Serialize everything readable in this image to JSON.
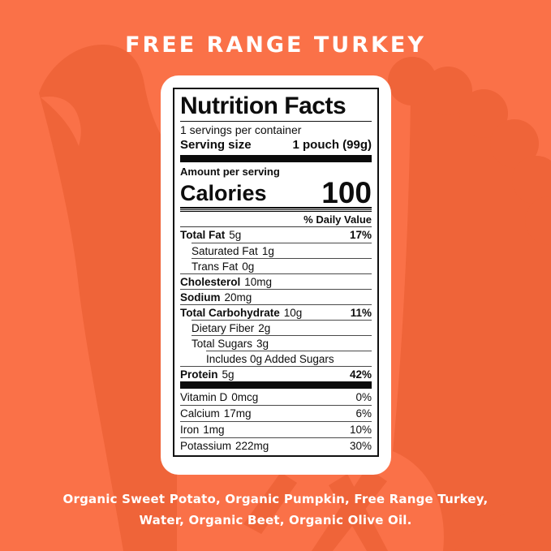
{
  "colors": {
    "background": "#FA7148",
    "silhouette": "#EF6439",
    "card": "#FFFFFF",
    "text_dark": "#0D0D0D",
    "text_light": "#FFFFFF"
  },
  "header": {
    "title": "FREE RANGE TURKEY"
  },
  "label": {
    "title": "Nutrition Facts",
    "servings_per_container": "1 servings per container",
    "serving_size_label": "Serving size",
    "serving_size_value": "1 pouch (99g)",
    "amount_per_serving": "Amount per serving",
    "calories_label": "Calories",
    "calories_value": "100",
    "daily_value_header": "% Daily Value",
    "rows": [
      {
        "name": "Total Fat",
        "value": "5g",
        "dv": "17%",
        "bold": true,
        "indent": 0
      },
      {
        "name": "Saturated Fat",
        "value": "1g",
        "dv": "",
        "bold": false,
        "indent": 1
      },
      {
        "name": "Trans Fat",
        "value": "0g",
        "dv": "",
        "bold": false,
        "indent": 1
      },
      {
        "name": "Cholesterol",
        "value": "10mg",
        "dv": "",
        "bold": true,
        "indent": 0
      },
      {
        "name": "Sodium",
        "value": "20mg",
        "dv": "",
        "bold": true,
        "indent": 0
      },
      {
        "name": "Total Carbohydrate",
        "value": "10g",
        "dv": "11%",
        "bold": true,
        "indent": 0
      },
      {
        "name": "Dietary Fiber",
        "value": "2g",
        "dv": "",
        "bold": false,
        "indent": 1
      },
      {
        "name": "Total Sugars",
        "value": "3g",
        "dv": "",
        "bold": false,
        "indent": 1
      },
      {
        "name": "Includes 0g Added Sugars",
        "value": "",
        "dv": "",
        "bold": false,
        "indent": 2
      },
      {
        "name": "Protein",
        "value": "5g",
        "dv": "42%",
        "bold": true,
        "indent": 0
      }
    ],
    "vitamins": [
      {
        "name": "Vitamin D",
        "value": "0mcg",
        "dv": "0%"
      },
      {
        "name": "Calcium",
        "value": "17mg",
        "dv": "6%"
      },
      {
        "name": "Iron",
        "value": "1mg",
        "dv": "10%"
      },
      {
        "name": "Potassium",
        "value": "222mg",
        "dv": "30%"
      }
    ]
  },
  "footer": {
    "ingredients_line1": "Organic Sweet Potato, Organic Pumpkin, Free Range Turkey,",
    "ingredients_line2": "Water, Organic Beet, Organic Olive Oil."
  }
}
